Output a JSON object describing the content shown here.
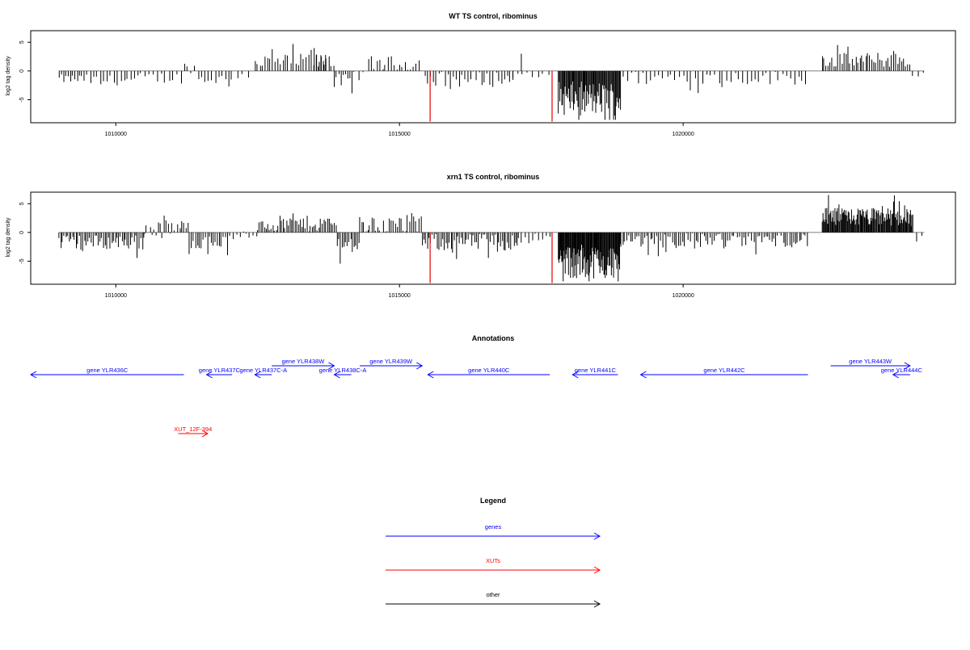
{
  "chart_data": [
    {
      "type": "bar",
      "title": "WT TS control, ribominus",
      "xlabel": "",
      "ylabel": "log2 tag density",
      "xlim": [
        1008500,
        1024800
      ],
      "ylim": [
        -9,
        7
      ],
      "x_ticks": [
        1010000,
        1015000,
        1020000
      ],
      "x_tick_labels": [
        "1010000",
        "1015000",
        "1020000"
      ],
      "y_ticks": [
        -5,
        0,
        5
      ],
      "y_tick_labels": [
        "-5",
        "0",
        "5"
      ],
      "baseline": 0,
      "grid": false,
      "bar_color": "#000000",
      "highlight_color": "#e60000",
      "highlights": [
        {
          "x": 1015540,
          "y": -8.8
        },
        {
          "x": 1017690,
          "y": -8.8
        }
      ],
      "regions": [
        {
          "x": [
            1009000,
            1009500
          ],
          "mean": -1.4,
          "amp": 0.8,
          "step": 40
        },
        {
          "x": [
            1009550,
            1010400
          ],
          "mean": -1.6,
          "amp": 0.9,
          "step": 60
        },
        {
          "x": [
            1010450,
            1011200
          ],
          "mean": -1.2,
          "amp": 1.0,
          "step": 70
        },
        {
          "x": [
            1011200,
            1011400
          ],
          "mean": 0.6,
          "amp": 1.0,
          "step": 60
        },
        {
          "x": [
            1011450,
            1012000
          ],
          "mean": -1.4,
          "amp": 0.9,
          "step": 60
        },
        {
          "x": [
            1012050,
            1012400
          ],
          "mean": -0.8,
          "amp": 0.6,
          "step": 90
        },
        {
          "x": [
            1012450,
            1013850
          ],
          "mean": 1.6,
          "amp": 1.4,
          "step": 45
        },
        {
          "x": [
            1013500,
            1013700
          ],
          "mean": 2.5,
          "amp": 1.0,
          "step": 40
        },
        {
          "x": [
            1013850,
            1014200
          ],
          "mean": -1.8,
          "amp": 1.3,
          "step": 40
        },
        {
          "x": [
            1014200,
            1014400
          ],
          "mean": -0.5,
          "amp": 0.5,
          "step": 70
        },
        {
          "x": [
            1014450,
            1015400
          ],
          "mean": 1.3,
          "amp": 1.3,
          "step": 50
        },
        {
          "x": [
            1015450,
            1017000
          ],
          "mean": -1.4,
          "amp": 1.4,
          "step": 50
        },
        {
          "x": [
            1017000,
            1017700
          ],
          "mean": -0.9,
          "amp": 0.7,
          "step": 90
        },
        {
          "x": [
            1017150,
            1017170
          ],
          "mean": 3.0,
          "amp": 0.0,
          "step": 30
        },
        {
          "x": [
            1017800,
            1018900
          ],
          "mean": -4.8,
          "amp": 3.0,
          "step": 15
        },
        {
          "x": [
            1018950,
            1022200
          ],
          "mean": -1.2,
          "amp": 1.2,
          "step": 70
        },
        {
          "x": [
            1022450,
            1024000
          ],
          "mean": 1.9,
          "amp": 1.3,
          "step": 35
        },
        {
          "x": [
            1024050,
            1024250
          ],
          "mean": -1.0,
          "amp": 1.2,
          "step": 90
        }
      ]
    },
    {
      "type": "bar",
      "title": "xrn1 TS control, ribominus",
      "xlabel": "",
      "ylabel": "log2 tag density",
      "xlim": [
        1008500,
        1024800
      ],
      "ylim": [
        -9,
        7
      ],
      "x_ticks": [
        1010000,
        1015000,
        1020000
      ],
      "x_tick_labels": [
        "1010000",
        "1015000",
        "1020000"
      ],
      "y_ticks": [
        -5,
        0,
        5
      ],
      "y_tick_labels": [
        "-5",
        "0",
        "5"
      ],
      "baseline": 0,
      "grid": false,
      "bar_color": "#000000",
      "highlight_color": "#e60000",
      "highlights": [
        {
          "x": 1015540,
          "y": -8.8
        },
        {
          "x": 1017690,
          "y": -8.8
        }
      ],
      "regions": [
        {
          "x": [
            1009000,
            1010500
          ],
          "mean": -1.7,
          "amp": 1.3,
          "step": 30
        },
        {
          "x": [
            1010500,
            1011300
          ],
          "mean": 0.6,
          "amp": 1.6,
          "step": 35
        },
        {
          "x": [
            1011300,
            1012000
          ],
          "mean": -1.6,
          "amp": 1.2,
          "step": 35
        },
        {
          "x": [
            1012000,
            1012500
          ],
          "mean": -0.6,
          "amp": 0.8,
          "step": 60
        },
        {
          "x": [
            1012500,
            1013900
          ],
          "mean": 1.5,
          "amp": 1.4,
          "step": 30
        },
        {
          "x": [
            1013900,
            1014300
          ],
          "mean": -2.0,
          "amp": 1.4,
          "step": 30
        },
        {
          "x": [
            1014300,
            1015400
          ],
          "mean": 1.3,
          "amp": 1.5,
          "step": 35
        },
        {
          "x": [
            1015400,
            1017100
          ],
          "mean": -1.7,
          "amp": 1.5,
          "step": 30
        },
        {
          "x": [
            1017100,
            1017700
          ],
          "mean": -1.0,
          "amp": 0.9,
          "step": 60
        },
        {
          "x": [
            1017800,
            1018900
          ],
          "mean": -5.0,
          "amp": 3.0,
          "step": 12
        },
        {
          "x": [
            1018900,
            1022200
          ],
          "mean": -1.3,
          "amp": 1.3,
          "step": 35
        },
        {
          "x": [
            1022450,
            1024050
          ],
          "mean": 2.7,
          "amp": 1.6,
          "step": 14
        },
        {
          "x": [
            1024050,
            1024250
          ],
          "mean": -1.0,
          "amp": 1.2,
          "step": 80
        }
      ]
    },
    {
      "type": "other",
      "title": "Annotations",
      "xlim": [
        1008500,
        1024800
      ],
      "features": [
        {
          "label": "gene YLR436C",
          "start": 1008500,
          "end": 1011200,
          "strand": "-",
          "track": 0,
          "color": "#0000ff"
        },
        {
          "label": "gene YLR437C",
          "start": 1011600,
          "end": 1012050,
          "strand": "-",
          "track": 0,
          "color": "#0000ff"
        },
        {
          "label": "gene YLR437C-A",
          "start": 1012450,
          "end": 1012750,
          "strand": "-",
          "track": 0,
          "color": "#0000ff"
        },
        {
          "label": "gene YLR438W",
          "start": 1012750,
          "end": 1013850,
          "strand": "+",
          "track": 1,
          "color": "#0000ff"
        },
        {
          "label": "gene YLR438C-A",
          "start": 1013850,
          "end": 1014150,
          "strand": "-",
          "track": 0,
          "color": "#0000ff"
        },
        {
          "label": "gene YLR439W",
          "start": 1014300,
          "end": 1015400,
          "strand": "+",
          "track": 1,
          "color": "#0000ff"
        },
        {
          "label": "gene YLR440C",
          "start": 1015500,
          "end": 1017650,
          "strand": "-",
          "track": 0,
          "color": "#0000ff"
        },
        {
          "label": "gene YLR441C",
          "start": 1018050,
          "end": 1018850,
          "strand": "-",
          "track": 0,
          "color": "#0000ff"
        },
        {
          "label": "gene YLR442C",
          "start": 1019250,
          "end": 1022200,
          "strand": "-",
          "track": 0,
          "color": "#0000ff"
        },
        {
          "label": "gene YLR443W",
          "start": 1022600,
          "end": 1024000,
          "strand": "+",
          "track": 1,
          "color": "#0000ff"
        },
        {
          "label": "gene YLR444C",
          "start": 1023700,
          "end": 1024000,
          "strand": "-",
          "track": 0,
          "color": "#0000ff"
        },
        {
          "label": "XUT_12F-394",
          "start": 1011100,
          "end": 1011620,
          "strand": "+",
          "track": 2,
          "color": "#ff0000"
        }
      ]
    },
    {
      "type": "other",
      "title": "Legend",
      "entries": [
        {
          "label": "genes",
          "color": "#0000ff"
        },
        {
          "label": "XUTs",
          "color": "#ff0000"
        },
        {
          "label": "other",
          "color": "#000000"
        }
      ]
    }
  ]
}
